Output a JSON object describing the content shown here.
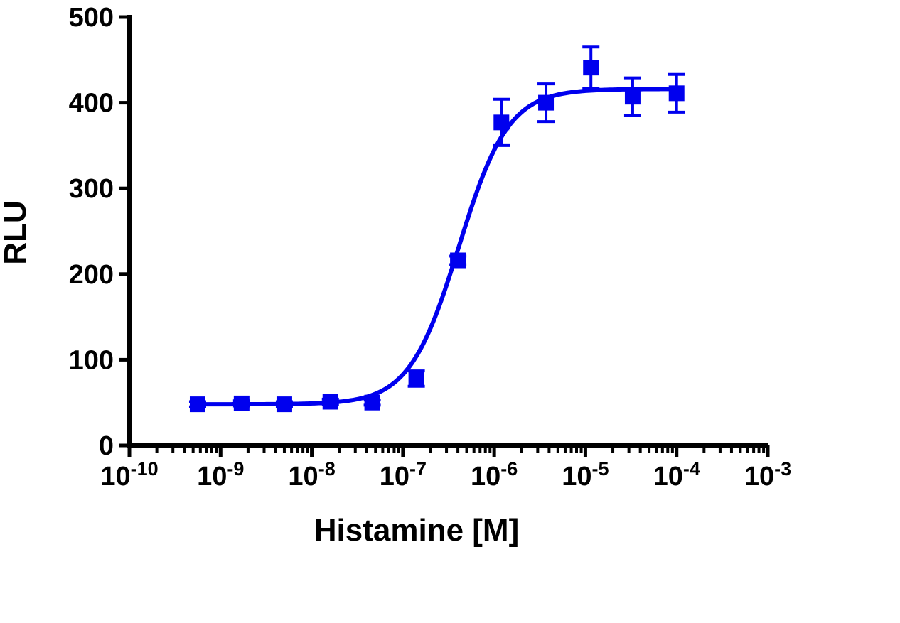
{
  "chart_data": {
    "type": "scatter",
    "xlabel": "Histamine [M]",
    "ylabel": "RLU",
    "x_scale": "log",
    "xlim": [
      1e-10,
      0.001
    ],
    "ylim": [
      0,
      500
    ],
    "y_ticks": [
      {
        "value": 0,
        "label": "0"
      },
      {
        "value": 100,
        "label": "100"
      },
      {
        "value": 200,
        "label": "200"
      },
      {
        "value": 300,
        "label": "300"
      },
      {
        "value": 400,
        "label": "400"
      },
      {
        "value": 500,
        "label": "500"
      }
    ],
    "x_ticks": [
      {
        "value": 1e-10,
        "base": "10",
        "exp": "-10"
      },
      {
        "value": 1e-09,
        "base": "10",
        "exp": "-9"
      },
      {
        "value": 1e-08,
        "base": "10",
        "exp": "-8"
      },
      {
        "value": 1e-07,
        "base": "10",
        "exp": "-7"
      },
      {
        "value": 1e-06,
        "base": "10",
        "exp": "-6"
      },
      {
        "value": 1e-05,
        "base": "10",
        "exp": "-5"
      },
      {
        "value": 0.0001,
        "base": "10",
        "exp": "-4"
      },
      {
        "value": 0.001,
        "base": "10",
        "exp": "-3"
      }
    ],
    "grid": false,
    "series": [
      {
        "color": "#0000ee",
        "marker": "square",
        "points": [
          {
            "x": 5.6e-10,
            "y": 48,
            "err": 3
          },
          {
            "x": 1.7e-09,
            "y": 49,
            "err": 3
          },
          {
            "x": 5e-09,
            "y": 48,
            "err": 3
          },
          {
            "x": 1.6e-08,
            "y": 51,
            "err": 3
          },
          {
            "x": 4.6e-08,
            "y": 50,
            "err": 3
          },
          {
            "x": 1.4e-07,
            "y": 78,
            "err": 9
          },
          {
            "x": 4e-07,
            "y": 216,
            "err": 5
          },
          {
            "x": 1.2e-06,
            "y": 377,
            "err": 27
          },
          {
            "x": 3.7e-06,
            "y": 400,
            "err": 22
          },
          {
            "x": 1.15e-05,
            "y": 441,
            "err": 24
          },
          {
            "x": 3.3e-05,
            "y": 407,
            "err": 22
          },
          {
            "x": 0.0001,
            "y": 411,
            "err": 22
          }
        ],
        "fit": {
          "model": "sigmoidal dose-response",
          "bottom": 48,
          "top": 416,
          "ec50": 4.1e-07,
          "hill": 1.6
        }
      }
    ]
  }
}
